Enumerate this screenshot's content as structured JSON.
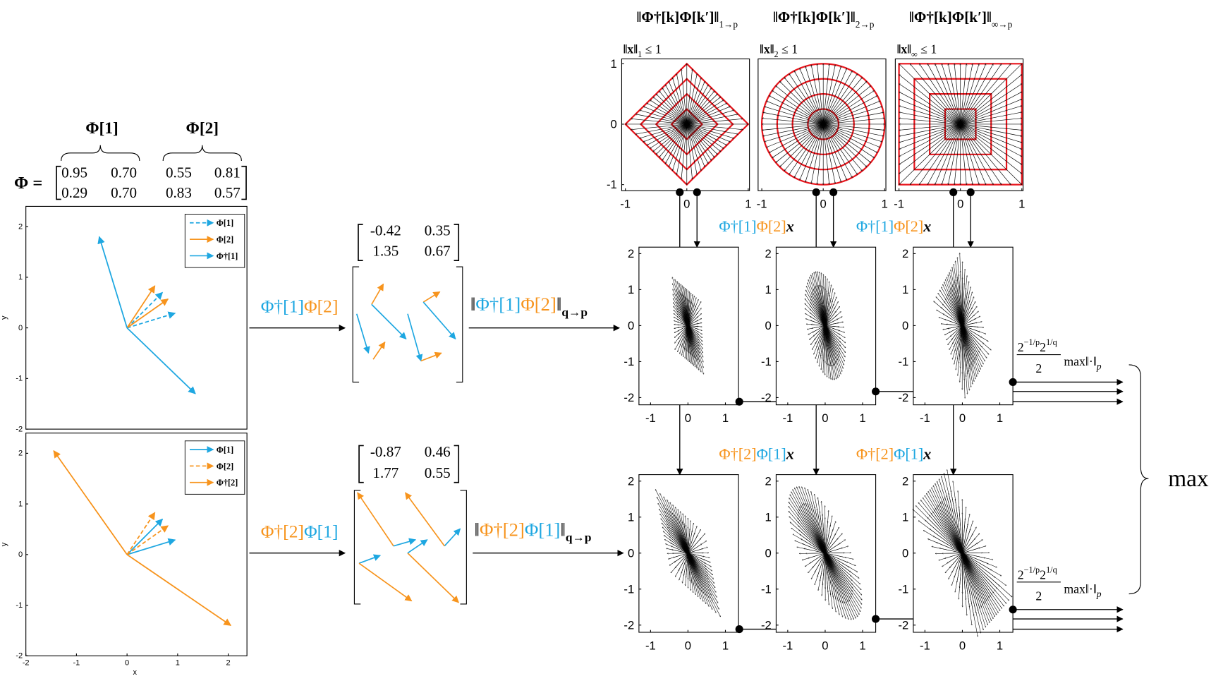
{
  "header": {
    "phi1": "Φ[1]",
    "phi2": "Φ[2]",
    "phi_eq": "Φ ="
  },
  "colors": {
    "blue": "#1ea7e1",
    "orange": "#f7941d",
    "red": "#e8141b"
  },
  "phi_matrix": {
    "rows": [
      [
        "0.95",
        "0.70",
        "0.55",
        "0.81"
      ],
      [
        "0.29",
        "0.70",
        "0.83",
        "0.57"
      ]
    ]
  },
  "left_plots": [
    {
      "legend": [
        {
          "label": "Φ[1]",
          "color": "#1ea7e1",
          "dashed": true
        },
        {
          "label": "Φ[2]",
          "color": "#f7941d",
          "dashed": false
        },
        {
          "label": "Φ†[1]",
          "color": "#1ea7e1",
          "dashed": false
        }
      ],
      "xlim": [
        -2,
        2.37
      ],
      "ylim": [
        -2,
        2.4
      ],
      "yticks": [
        -2,
        -1,
        0,
        1,
        2
      ],
      "ylabel": "y"
    },
    {
      "legend": [
        {
          "label": "Φ[1]",
          "color": "#1ea7e1",
          "dashed": false
        },
        {
          "label": "Φ[2]",
          "color": "#f7941d",
          "dashed": true
        },
        {
          "label": "Φ†[2]",
          "color": "#f7941d",
          "dashed": false
        }
      ],
      "xlim": [
        -2,
        2.37
      ],
      "ylim": [
        -2,
        2.4
      ],
      "xticks": [
        -2,
        -1,
        0,
        1,
        2
      ],
      "yticks": [
        -2,
        -1,
        0,
        1,
        2
      ],
      "xlabel": "x",
      "ylabel": "y"
    }
  ],
  "operators": [
    {
      "parts": [
        {
          "text": "Φ†[1]",
          "color": "#1ea7e1"
        },
        {
          "text": "Φ[2]",
          "color": "#f7941d"
        }
      ]
    },
    {
      "parts": [
        {
          "text": "Φ†[2]",
          "color": "#f7941d"
        },
        {
          "text": "Φ[1]",
          "color": "#1ea7e1"
        }
      ]
    }
  ],
  "products": [
    {
      "matrix": [
        [
          -0.42,
          0.35
        ],
        [
          1.35,
          0.67
        ]
      ]
    },
    {
      "matrix": [
        [
          -0.87,
          0.46
        ],
        [
          1.77,
          0.55
        ]
      ]
    }
  ],
  "norms": [
    {
      "parts": [
        {
          "text": "‖",
          "color": "#000000"
        },
        {
          "text": "Φ†[1]",
          "color": "#1ea7e1"
        },
        {
          "text": "Φ[2]",
          "color": "#f7941d"
        },
        {
          "text": "‖",
          "color": "#000000"
        }
      ],
      "sub": "q→p"
    },
    {
      "parts": [
        {
          "text": "‖",
          "color": "#000000"
        },
        {
          "text": "Φ†[2]",
          "color": "#f7941d"
        },
        {
          "text": "Φ[1]",
          "color": "#1ea7e1"
        },
        {
          "text": "‖",
          "color": "#000000"
        }
      ],
      "sub": "q→p"
    }
  ],
  "balls": [
    {
      "title": "‖Φ†[k]Φ[k′]‖",
      "title_sub": "1→p",
      "constraint": "‖x‖",
      "constraint_sub": "1",
      "constraint_rest": " ≤ 1",
      "norm": "1"
    },
    {
      "title": "‖Φ†[k]Φ[k′]‖",
      "title_sub": "2→p",
      "constraint": "‖x‖",
      "constraint_sub": "2",
      "constraint_rest": " ≤ 1",
      "norm": "2"
    },
    {
      "title": "‖Φ†[k]Φ[k′]‖",
      "title_sub": "∞→p",
      "constraint": "‖x‖",
      "constraint_sub": "∞",
      "constraint_rest": " ≤ 1",
      "norm": "inf"
    }
  ],
  "ball_axes": {
    "xlim": [
      -1.06,
      1.02
    ],
    "ylim": [
      -1.1,
      1.08
    ],
    "xticks": [
      -1,
      0,
      1
    ],
    "yticks": [
      -1,
      0,
      1
    ]
  },
  "mapped_axes": {
    "xlim": [
      -1.31,
      1.35
    ],
    "ylim": [
      -2.2,
      2.18
    ],
    "xticks": [
      -1,
      0,
      1
    ],
    "yticks": [
      -2,
      -1,
      0,
      1,
      2
    ]
  },
  "row_labels": [
    {
      "parts": [
        {
          "text": "Φ†[1]",
          "color": "#1ea7e1"
        },
        {
          "text": "Φ[2]",
          "color": "#f7941d"
        },
        {
          "text": "x",
          "color": "#000000"
        }
      ]
    },
    {
      "parts": [
        {
          "text": "Φ†[2]",
          "color": "#f7941d"
        },
        {
          "text": "Φ[1]",
          "color": "#1ea7e1"
        },
        {
          "text": "x",
          "color": "#000000"
        }
      ]
    }
  ],
  "scale_label": {
    "num": [
      "2",
      "−1/p",
      "2",
      "1/q"
    ],
    "den": "2",
    "op": "max‖·‖",
    "sub": "p"
  },
  "max": "max"
}
